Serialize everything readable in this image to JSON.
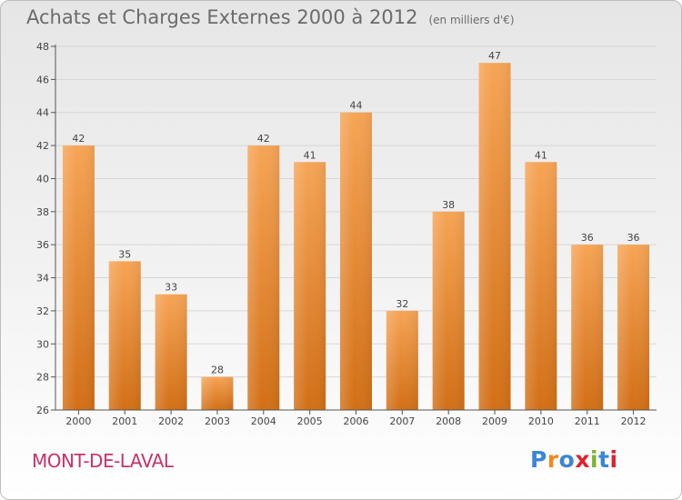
{
  "header": {
    "title": "Achats et Charges Externes 2000 à 2012",
    "unit": "(en milliers d'€)"
  },
  "footer": {
    "commune": "MONT-DE-LAVAL",
    "logo_letters": [
      "P",
      "r",
      "o",
      "x",
      "i",
      "t",
      "i"
    ],
    "logo_colors": [
      "#3a86d8",
      "#f08a1c",
      "#3a86d8",
      "#e0222a",
      "#7fb32a",
      "#3a86d8",
      "#e0222a"
    ]
  },
  "colors": {
    "bar_top": "#f6a455",
    "bar_bottom": "#d26f16",
    "axis": "#555555",
    "grid": "#d6d6d6"
  },
  "chart_data": {
    "type": "bar",
    "categories": [
      "2000",
      "2001",
      "2002",
      "2003",
      "2004",
      "2005",
      "2006",
      "2007",
      "2008",
      "2009",
      "2010",
      "2011",
      "2012"
    ],
    "values": [
      42,
      35,
      33,
      28,
      42,
      41,
      44,
      32,
      38,
      47,
      41,
      36,
      36
    ],
    "data_labels": [
      "42",
      "35",
      "33",
      "28",
      "42",
      "41",
      "44",
      "32",
      "38",
      "47",
      "41",
      "36",
      "36"
    ],
    "yticks": [
      "26",
      "28",
      "30",
      "32",
      "34",
      "36",
      "38",
      "40",
      "42",
      "44",
      "46",
      "48"
    ],
    "ylim": [
      26,
      48
    ],
    "grid": true,
    "title": "Achats et Charges Externes 2000 à 2012",
    "xlabel": "",
    "ylabel": ""
  }
}
